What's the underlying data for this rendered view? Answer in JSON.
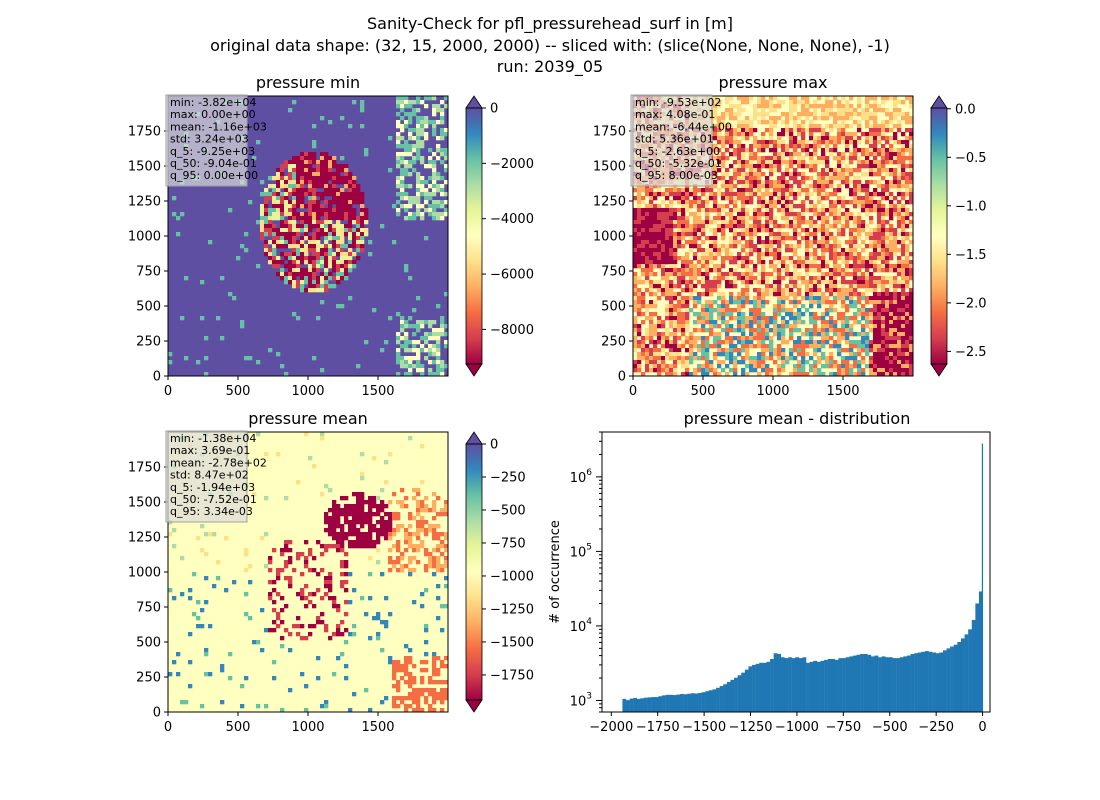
{
  "figure": {
    "suptitle_lines": [
      "Sanity-Check for pfl_pressurehead_surf in [m]",
      "original data shape: (32, 15, 2000, 2000) -- sliced with: (slice(None, None, None), -1)",
      "run: 2039_05"
    ],
    "cmap": "Spectral",
    "colors": {
      "over": "#5e4fa2",
      "under": "#9e0142",
      "hist": "#1f77b4"
    }
  },
  "chart_data": [
    {
      "type": "heatmap",
      "title": "pressure min",
      "x_ticks": [
        "0",
        "500",
        "1000",
        "1500"
      ],
      "y_ticks": [
        "0",
        "250",
        "500",
        "750",
        "1000",
        "1250",
        "1500",
        "1750"
      ],
      "xlim": [
        0,
        2000
      ],
      "ylim": [
        0,
        2000
      ],
      "stats": [
        "min: -3.82e+04",
        "max: 0.00e+00",
        "mean: -1.16e+03",
        "std: 3.24e+03",
        "q_5: -9.25e+03",
        "q_50: -9.04e-01",
        "q_95: 0.00e+00"
      ],
      "colorbar": {
        "range": [
          -9250,
          0
        ],
        "ticks": [
          0,
          -2000,
          -4000,
          -6000,
          -8000
        ],
        "tick_labels": [
          "0",
          "−2000",
          "−4000",
          "−6000",
          "−8000"
        ],
        "extend": "both"
      }
    },
    {
      "type": "heatmap",
      "title": "pressure max",
      "x_ticks": [
        "0",
        "500",
        "1000",
        "1500"
      ],
      "y_ticks": [
        "0",
        "250",
        "500",
        "750",
        "1000",
        "1250",
        "1500",
        "1750"
      ],
      "xlim": [
        0,
        2000
      ],
      "ylim": [
        0,
        2000
      ],
      "stats": [
        "min: -9.53e+02",
        "max: 4.08e-01",
        "mean: -6.44e+00",
        "std: 5.36e+01",
        "q_5: -2.63e+00",
        "q_50: -5.32e-01",
        "q_95: 8.00e-03"
      ],
      "colorbar": {
        "range": [
          -2.63,
          0.008
        ],
        "ticks": [
          0.0,
          -0.5,
          -1.0,
          -1.5,
          -2.0,
          -2.5
        ],
        "tick_labels": [
          "0.0",
          "−0.5",
          "−1.0",
          "−1.5",
          "−2.0",
          "−2.5"
        ],
        "extend": "both"
      }
    },
    {
      "type": "heatmap",
      "title": "pressure mean",
      "x_ticks": [
        "0",
        "500",
        "1000",
        "1500"
      ],
      "y_ticks": [
        "0",
        "250",
        "500",
        "750",
        "1000",
        "1250",
        "1500",
        "1750"
      ],
      "xlim": [
        0,
        2000
      ],
      "ylim": [
        0,
        2000
      ],
      "stats": [
        "min: -1.38e+04",
        "max: 3.69e-01",
        "mean: -2.78e+02",
        "std: 8.47e+02",
        "q_5: -1.94e+03",
        "q_50: -7.52e-01",
        "q_95: 3.34e-03"
      ],
      "colorbar": {
        "range": [
          -1940,
          0.00334
        ],
        "ticks": [
          0,
          -250,
          -500,
          -750,
          -1000,
          -1250,
          -1500,
          -1750
        ],
        "tick_labels": [
          "0",
          "−250",
          "−500",
          "−750",
          "−1000",
          "−1250",
          "−1500",
          "−1750"
        ],
        "extend": "both"
      }
    },
    {
      "type": "bar",
      "title": "pressure mean - distribution",
      "ylabel": "# of occurrence",
      "yscale": "log",
      "xlim": [
        -2050,
        40
      ],
      "ylim": [
        700,
        4000000
      ],
      "x_ticks": [
        -2000,
        -1750,
        -1500,
        -1250,
        -1000,
        -750,
        -500,
        -250,
        0
      ],
      "x_tick_labels": [
        "−2000",
        "−1750",
        "−1500",
        "−1250",
        "−1000",
        "−750",
        "−500",
        "−250",
        "0"
      ],
      "y_ticks": [
        1000,
        10000,
        100000,
        1000000
      ],
      "bin_range": [
        -1940,
        0
      ],
      "bin_count": 100,
      "counts": [
        1050,
        1010,
        1060,
        1080,
        1050,
        1070,
        1090,
        1100,
        1110,
        1110,
        1140,
        1170,
        1190,
        1190,
        1180,
        1200,
        1220,
        1210,
        1230,
        1250,
        1240,
        1260,
        1290,
        1330,
        1370,
        1410,
        1480,
        1560,
        1650,
        1770,
        1890,
        2020,
        2180,
        2360,
        2590,
        2870,
        3000,
        3100,
        3200,
        3200,
        3300,
        3600,
        4300,
        4200,
        3800,
        3700,
        3800,
        3700,
        3800,
        3700,
        3800,
        3200,
        3300,
        3400,
        3300,
        3400,
        3500,
        3600,
        3600,
        3500,
        3700,
        3700,
        3800,
        3900,
        4000,
        4100,
        4200,
        4200,
        4100,
        3900,
        4000,
        3800,
        3900,
        3800,
        3800,
        3700,
        3700,
        3800,
        3900,
        4000,
        4200,
        4300,
        4400,
        4500,
        4600,
        4500,
        4400,
        4300,
        4400,
        4700,
        5000,
        5300,
        5600,
        6100,
        6800,
        7700,
        9000,
        12000,
        20000,
        29000
      ]
    }
  ]
}
